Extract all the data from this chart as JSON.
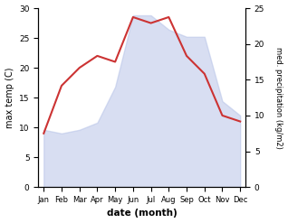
{
  "months": [
    "Jan",
    "Feb",
    "Mar",
    "Apr",
    "May",
    "Jun",
    "Jul",
    "Aug",
    "Sep",
    "Oct",
    "Nov",
    "Dec"
  ],
  "temperature": [
    9,
    17,
    20,
    22,
    21,
    28.5,
    27.5,
    28.5,
    22,
    19,
    12,
    11
  ],
  "precipitation": [
    8,
    7.5,
    8,
    9,
    14,
    24,
    24,
    22,
    21,
    21,
    12,
    10
  ],
  "temp_color": "#cc3333",
  "precip_fill_color": "#b8c4e8",
  "title": "",
  "xlabel": "date (month)",
  "ylabel_left": "max temp (C)",
  "ylabel_right": "med. precipitation (kg/m2)",
  "ylim_left": [
    0,
    30
  ],
  "ylim_right": [
    0,
    25
  ],
  "bg_color": "#ffffff",
  "temp_linewidth": 1.5,
  "precip_alpha": 0.55
}
